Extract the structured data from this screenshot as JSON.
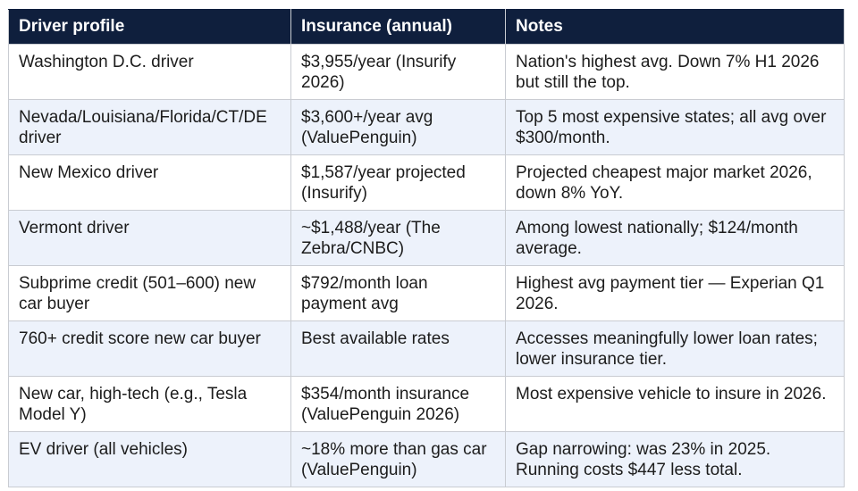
{
  "table": {
    "headers": [
      "Driver profile",
      "Insurance (annual)",
      "Notes"
    ],
    "rows": [
      [
        "Washington D.C. driver",
        "$3,955/year (Insurify 2026)",
        "Nation's highest avg. Down 7% H1 2026 but still the top."
      ],
      [
        "Nevada/Louisiana/Florida/CT/DE driver",
        "$3,600+/year avg (ValuePenguin)",
        "Top 5 most expensive states; all avg over $300/month."
      ],
      [
        "New Mexico driver",
        "$1,587/year projected (Insurify)",
        "Projected cheapest major market 2026, down 8% YoY."
      ],
      [
        "Vermont driver",
        "~$1,488/year (The Zebra/CNBC)",
        "Among lowest nationally; $124/month average."
      ],
      [
        "Subprime credit (501–600) new car buyer",
        "$792/month loan payment avg",
        "Highest avg payment tier — Experian Q1 2026."
      ],
      [
        "760+ credit score new car buyer",
        "Best available rates",
        "Accesses meaningfully lower loan rates; lower insurance tier."
      ],
      [
        "New car, high-tech (e.g., Tesla Model Y)",
        "$354/month insurance (ValuePenguin 2026)",
        "Most expensive vehicle to insure in 2026."
      ],
      [
        "EV driver (all vehicles)",
        "~18% more than gas car (ValuePenguin)",
        "Gap narrowing: was 23% in 2025. Running costs $447 less total."
      ]
    ]
  }
}
